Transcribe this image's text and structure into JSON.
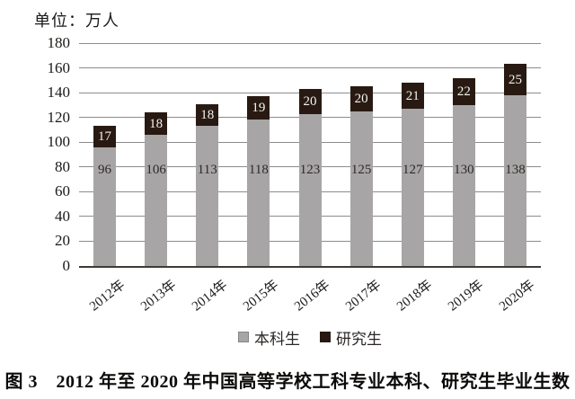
{
  "chart_data": {
    "type": "bar",
    "stacked": true,
    "unit_label": "单位：万人",
    "categories": [
      "2012年",
      "2013年",
      "2014年",
      "2015年",
      "2016年",
      "2017年",
      "2018年",
      "2019年",
      "2020年"
    ],
    "series": [
      {
        "name": "本科生",
        "color": "#a7a5a5",
        "text_color": "#2e2a28",
        "values": [
          96,
          106,
          113,
          118,
          123,
          125,
          127,
          130,
          138
        ]
      },
      {
        "name": "研究生",
        "color": "#281a12",
        "text_color": "#f5f2ef",
        "values": [
          17,
          18,
          18,
          19,
          20,
          20,
          21,
          22,
          25
        ]
      }
    ],
    "y_axis": {
      "min": 0,
      "max": 180,
      "step": 20,
      "tick_labels": [
        "0",
        "20",
        "40",
        "60",
        "80",
        "100",
        "120",
        "140",
        "160",
        "180"
      ]
    },
    "legend": {
      "position": "bottom",
      "items": [
        "本科生",
        "研究生"
      ]
    },
    "grid": true
  },
  "caption": "图 3　2012 年至 2020 年中国高等学校工科专业本科、研究生毕业生数",
  "colors": {
    "background": "#ffffff",
    "gridline": "#8c8c8c",
    "baseline": "#403a37",
    "axis_text": "#1c1917"
  }
}
